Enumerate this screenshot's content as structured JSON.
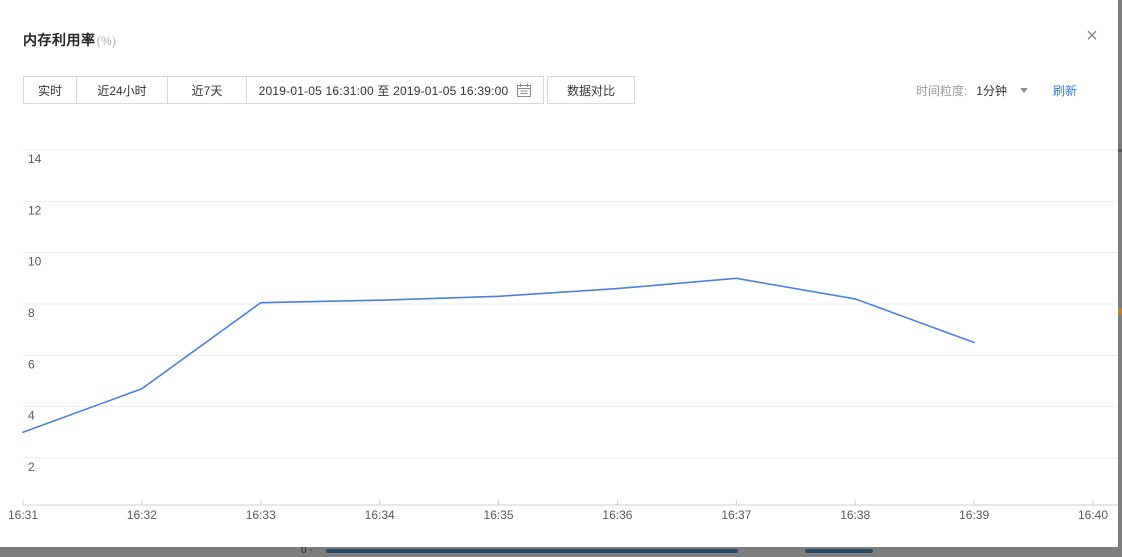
{
  "header": {
    "title": "内存利用率",
    "unit": "(%)",
    "close_glyph": "×"
  },
  "toolbar": {
    "time_tabs": [
      {
        "label": "实时"
      },
      {
        "label": "近24小时"
      },
      {
        "label": "近7天"
      }
    ],
    "date_range": {
      "value": "2019-01-05 16:31:00 至 2019-01-05 16:39:00",
      "icon": "calendar-icon"
    },
    "compare_label": "数据对比",
    "granularity_label": "时间粒度:",
    "granularity_value": "1分钟",
    "refresh_label": "刷新",
    "accent_color": "#2d7cee"
  },
  "chart_data": {
    "type": "line",
    "title": "内存利用率(%)",
    "x": [
      "16:31",
      "16:32",
      "16:33",
      "16:34",
      "16:35",
      "16:36",
      "16:37",
      "16:38",
      "16:39",
      "16:40"
    ],
    "series": [
      {
        "name": "内存利用率",
        "color": "#4c81df",
        "values": [
          3.0,
          4.7,
          8.05,
          8.15,
          8.3,
          8.6,
          9.0,
          8.2,
          6.5
        ]
      }
    ],
    "xlabel": "",
    "ylabel": "",
    "y_ticks": [
      2,
      4,
      6,
      8,
      10,
      12,
      14
    ],
    "ylim": [
      0.2,
      14.8
    ],
    "grid": true,
    "legend": false,
    "axis_color": "#cfcfcf",
    "grid_color": "#ececec",
    "tick_label_color": "#5a5a5a"
  },
  "background_page": {
    "visible_text": "0 -"
  }
}
